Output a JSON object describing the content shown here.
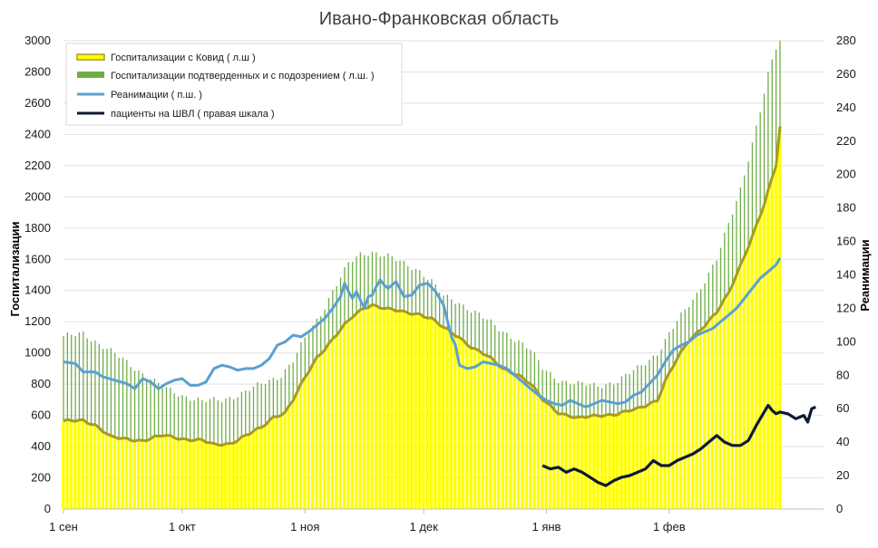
{
  "chart_data": {
    "type": "area",
    "title": "Ивано-Франковская область",
    "ylabel_left": "Госпитализации",
    "ylabel_right": "Реанимации",
    "x_axis": {
      "start_date": "2020-09-01",
      "end_date": "2021-02-25",
      "tick_labels": [
        "1 сен",
        "1 окт",
        "1 ноя",
        "1 дек",
        "1 янв",
        "1 фев"
      ],
      "tick_day_index": [
        0,
        30,
        61,
        91,
        122,
        153
      ]
    },
    "y_left": {
      "range": [
        0,
        3000
      ],
      "ticks": [
        "0",
        "200",
        "400",
        "600",
        "800",
        "1000",
        "1200",
        "1400",
        "1600",
        "1800",
        "2000",
        "2200",
        "2400",
        "2600",
        "2800",
        "3000"
      ]
    },
    "y_right": {
      "range": [
        0,
        280
      ],
      "ticks": [
        "0",
        "20",
        "40",
        "60",
        "80",
        "100",
        "120",
        "140",
        "160",
        "180",
        "200",
        "220",
        "240",
        "260",
        "280"
      ]
    },
    "grid": true,
    "legend_position": "top-left",
    "series": [
      {
        "name": "Госпитализации подтверденных и с подозрением ( л.ш. )",
        "kind": "bars",
        "axis": "left",
        "color": "#70ad47",
        "knots": [
          [
            0,
            1100
          ],
          [
            5,
            1130
          ],
          [
            10,
            1040
          ],
          [
            15,
            960
          ],
          [
            20,
            870
          ],
          [
            25,
            780
          ],
          [
            30,
            730
          ],
          [
            35,
            690
          ],
          [
            40,
            700
          ],
          [
            45,
            740
          ],
          [
            50,
            800
          ],
          [
            55,
            860
          ],
          [
            58,
            950
          ],
          [
            61,
            1090
          ],
          [
            65,
            1250
          ],
          [
            68,
            1400
          ],
          [
            72,
            1570
          ],
          [
            75,
            1630
          ],
          [
            78,
            1650
          ],
          [
            82,
            1620
          ],
          [
            86,
            1570
          ],
          [
            90,
            1530
          ],
          [
            93,
            1460
          ],
          [
            96,
            1360
          ],
          [
            100,
            1320
          ],
          [
            105,
            1250
          ],
          [
            110,
            1150
          ],
          [
            115,
            1080
          ],
          [
            118,
            1020
          ],
          [
            121,
            900
          ],
          [
            125,
            830
          ],
          [
            130,
            800
          ],
          [
            135,
            790
          ],
          [
            140,
            820
          ],
          [
            145,
            900
          ],
          [
            150,
            1000
          ],
          [
            155,
            1200
          ],
          [
            160,
            1380
          ],
          [
            165,
            1600
          ],
          [
            168,
            1820
          ],
          [
            171,
            2050
          ],
          [
            174,
            2350
          ],
          [
            176,
            2550
          ],
          [
            178,
            2780
          ],
          [
            180,
            2950
          ],
          [
            181,
            3000
          ]
        ]
      },
      {
        "name": "Госпитализации с Ковид ( л.ш )",
        "kind": "area",
        "axis": "left",
        "color": "#ffff00",
        "border_color": "#a89a24",
        "knots": [
          [
            0,
            560
          ],
          [
            5,
            570
          ],
          [
            8,
            540
          ],
          [
            12,
            460
          ],
          [
            15,
            450
          ],
          [
            20,
            440
          ],
          [
            25,
            470
          ],
          [
            28,
            460
          ],
          [
            30,
            450
          ],
          [
            35,
            440
          ],
          [
            38,
            410
          ],
          [
            42,
            420
          ],
          [
            46,
            470
          ],
          [
            50,
            520
          ],
          [
            53,
            590
          ],
          [
            56,
            620
          ],
          [
            58,
            700
          ],
          [
            61,
            840
          ],
          [
            64,
            970
          ],
          [
            67,
            1060
          ],
          [
            70,
            1150
          ],
          [
            73,
            1230
          ],
          [
            76,
            1290
          ],
          [
            78,
            1310
          ],
          [
            82,
            1280
          ],
          [
            86,
            1260
          ],
          [
            90,
            1250
          ],
          [
            93,
            1220
          ],
          [
            96,
            1160
          ],
          [
            100,
            1100
          ],
          [
            103,
            1040
          ],
          [
            107,
            980
          ],
          [
            111,
            900
          ],
          [
            115,
            860
          ],
          [
            118,
            800
          ],
          [
            121,
            700
          ],
          [
            125,
            620
          ],
          [
            130,
            580
          ],
          [
            135,
            600
          ],
          [
            140,
            610
          ],
          [
            145,
            640
          ],
          [
            150,
            700
          ],
          [
            152,
            820
          ],
          [
            155,
            960
          ],
          [
            158,
            1080
          ],
          [
            162,
            1180
          ],
          [
            165,
            1260
          ],
          [
            168,
            1380
          ],
          [
            171,
            1560
          ],
          [
            174,
            1750
          ],
          [
            177,
            1950
          ],
          [
            180,
            2200
          ],
          [
            181,
            2450
          ]
        ]
      },
      {
        "name": "Реанимации ( п.ш. )",
        "kind": "line",
        "axis": "right",
        "color": "#5ba0d0",
        "knots": [
          [
            0,
            88
          ],
          [
            3,
            87
          ],
          [
            5,
            82
          ],
          [
            8,
            82
          ],
          [
            10,
            79
          ],
          [
            13,
            77
          ],
          [
            16,
            75
          ],
          [
            18,
            72
          ],
          [
            20,
            78
          ],
          [
            22,
            76
          ],
          [
            24,
            72
          ],
          [
            26,
            75
          ],
          [
            28,
            77
          ],
          [
            30,
            78
          ],
          [
            32,
            74
          ],
          [
            34,
            74
          ],
          [
            36,
            76
          ],
          [
            38,
            84
          ],
          [
            40,
            86
          ],
          [
            42,
            85
          ],
          [
            44,
            83
          ],
          [
            46,
            84
          ],
          [
            48,
            84
          ],
          [
            50,
            86
          ],
          [
            52,
            90
          ],
          [
            54,
            98
          ],
          [
            56,
            100
          ],
          [
            58,
            104
          ],
          [
            60,
            103
          ],
          [
            62,
            106
          ],
          [
            64,
            110
          ],
          [
            66,
            114
          ],
          [
            68,
            120
          ],
          [
            70,
            127
          ],
          [
            71,
            135
          ],
          [
            72,
            130
          ],
          [
            73,
            126
          ],
          [
            74,
            130
          ],
          [
            75,
            125
          ],
          [
            76,
            120
          ],
          [
            77,
            127
          ],
          [
            78,
            128
          ],
          [
            79,
            133
          ],
          [
            80,
            137
          ],
          [
            81,
            134
          ],
          [
            82,
            132
          ],
          [
            84,
            136
          ],
          [
            86,
            127
          ],
          [
            88,
            128
          ],
          [
            90,
            134
          ],
          [
            92,
            135
          ],
          [
            94,
            130
          ],
          [
            96,
            122
          ],
          [
            98,
            103
          ],
          [
            99,
            98
          ],
          [
            100,
            86
          ],
          [
            102,
            84
          ],
          [
            104,
            85
          ],
          [
            106,
            88
          ],
          [
            108,
            87
          ],
          [
            110,
            86
          ],
          [
            112,
            84
          ],
          [
            114,
            80
          ],
          [
            116,
            76
          ],
          [
            118,
            72
          ],
          [
            120,
            68
          ],
          [
            122,
            65
          ],
          [
            124,
            63
          ],
          [
            126,
            62
          ],
          [
            128,
            65
          ],
          [
            130,
            63
          ],
          [
            132,
            61
          ],
          [
            134,
            63
          ],
          [
            136,
            65
          ],
          [
            138,
            64
          ],
          [
            140,
            63
          ],
          [
            142,
            64
          ],
          [
            144,
            68
          ],
          [
            146,
            70
          ],
          [
            148,
            75
          ],
          [
            150,
            80
          ],
          [
            152,
            88
          ],
          [
            154,
            95
          ],
          [
            156,
            98
          ],
          [
            158,
            100
          ],
          [
            160,
            104
          ],
          [
            162,
            106
          ],
          [
            164,
            108
          ],
          [
            166,
            112
          ],
          [
            168,
            116
          ],
          [
            170,
            120
          ],
          [
            172,
            126
          ],
          [
            174,
            132
          ],
          [
            176,
            138
          ],
          [
            178,
            142
          ],
          [
            180,
            146
          ],
          [
            181,
            150
          ]
        ]
      },
      {
        "name": "пациенты на ШВЛ ( правая шкала )",
        "kind": "line",
        "axis": "right",
        "color": "#0d1a33",
        "knots": [
          [
            121,
            26
          ],
          [
            123,
            24
          ],
          [
            125,
            25
          ],
          [
            127,
            22
          ],
          [
            129,
            24
          ],
          [
            131,
            22
          ],
          [
            133,
            19
          ],
          [
            135,
            16
          ],
          [
            137,
            14
          ],
          [
            139,
            17
          ],
          [
            141,
            19
          ],
          [
            143,
            20
          ],
          [
            145,
            22
          ],
          [
            147,
            24
          ],
          [
            149,
            29
          ],
          [
            151,
            26
          ],
          [
            153,
            26
          ],
          [
            155,
            29
          ],
          [
            157,
            31
          ],
          [
            159,
            33
          ],
          [
            161,
            36
          ],
          [
            163,
            40
          ],
          [
            165,
            44
          ],
          [
            167,
            40
          ],
          [
            169,
            38
          ],
          [
            171,
            38
          ],
          [
            173,
            41
          ],
          [
            175,
            50
          ],
          [
            177,
            58
          ],
          [
            178,
            62
          ],
          [
            179,
            59
          ],
          [
            180,
            57
          ],
          [
            181,
            58
          ],
          [
            183,
            57
          ],
          [
            185,
            54
          ],
          [
            187,
            56
          ],
          [
            188,
            52
          ],
          [
            189,
            60
          ],
          [
            190,
            61
          ]
        ]
      }
    ]
  }
}
